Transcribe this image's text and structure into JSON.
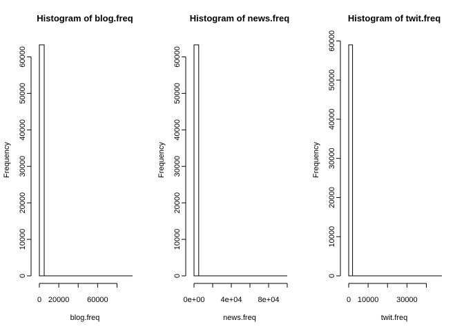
{
  "chart_data": [
    {
      "type": "bar",
      "title": "Histogram of blog.freq",
      "xlabel": "blog.freq",
      "ylabel": "Frequency",
      "xlim": [
        0,
        96000
      ],
      "ylim": [
        0,
        63300
      ],
      "bin_width": 5000,
      "bins": [
        {
          "x0": 0,
          "x1": 5000,
          "count": 63300
        },
        {
          "x0": 5000,
          "x1": 96000,
          "count": 0
        }
      ],
      "xticks": [
        {
          "value": 0,
          "label": "0"
        },
        {
          "value": 20000,
          "label": "20000"
        },
        {
          "value": 40000,
          "label": ""
        },
        {
          "value": 60000,
          "label": "60000"
        },
        {
          "value": 80000,
          "label": ""
        }
      ],
      "yticks": [
        {
          "value": 0,
          "label": "0"
        },
        {
          "value": 10000,
          "label": "10000"
        },
        {
          "value": 20000,
          "label": "20000"
        },
        {
          "value": 30000,
          "label": "30000"
        },
        {
          "value": 40000,
          "label": "40000"
        },
        {
          "value": 50000,
          "label": "50000"
        },
        {
          "value": 60000,
          "label": "60000"
        }
      ]
    },
    {
      "type": "bar",
      "title": "Histogram of news.freq",
      "xlabel": "news.freq",
      "ylabel": "Frequency",
      "xlim": [
        0,
        100000
      ],
      "ylim": [
        0,
        63300
      ],
      "bin_width": 5000,
      "bins": [
        {
          "x0": 0,
          "x1": 5000,
          "count": 63300
        },
        {
          "x0": 5000,
          "x1": 100000,
          "count": 0
        }
      ],
      "xticks": [
        {
          "value": 0,
          "label": "0e+00"
        },
        {
          "value": 20000,
          "label": ""
        },
        {
          "value": 40000,
          "label": "4e+04"
        },
        {
          "value": 60000,
          "label": ""
        },
        {
          "value": 80000,
          "label": "8e+04"
        },
        {
          "value": 100000,
          "label": ""
        }
      ],
      "yticks": [
        {
          "value": 0,
          "label": "0"
        },
        {
          "value": 10000,
          "label": "10000"
        },
        {
          "value": 20000,
          "label": "20000"
        },
        {
          "value": 30000,
          "label": "30000"
        },
        {
          "value": 40000,
          "label": "40000"
        },
        {
          "value": 50000,
          "label": "50000"
        },
        {
          "value": 60000,
          "label": "60000"
        }
      ]
    },
    {
      "type": "bar",
      "title": "Histogram of twit.freq",
      "xlabel": "twit.freq",
      "ylabel": "Frequency",
      "xlim": [
        0,
        48000
      ],
      "ylim": [
        0,
        59000
      ],
      "bin_width": 2000,
      "bins": [
        {
          "x0": 0,
          "x1": 2000,
          "count": 59000
        },
        {
          "x0": 2000,
          "x1": 48000,
          "count": 0
        }
      ],
      "xticks": [
        {
          "value": 0,
          "label": "0"
        },
        {
          "value": 10000,
          "label": "10000"
        },
        {
          "value": 20000,
          "label": ""
        },
        {
          "value": 30000,
          "label": "30000"
        },
        {
          "value": 40000,
          "label": ""
        }
      ],
      "yticks": [
        {
          "value": 0,
          "label": "0"
        },
        {
          "value": 10000,
          "label": "10000"
        },
        {
          "value": 20000,
          "label": "20000"
        },
        {
          "value": 30000,
          "label": "30000"
        },
        {
          "value": 40000,
          "label": "40000"
        },
        {
          "value": 50000,
          "label": "50000"
        },
        {
          "value": 60000,
          "label": "60000"
        }
      ]
    }
  ]
}
